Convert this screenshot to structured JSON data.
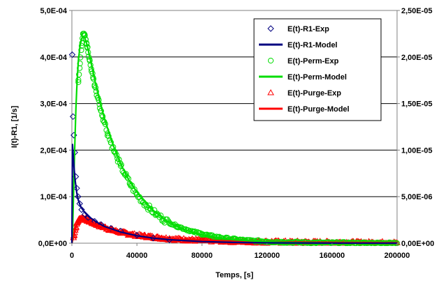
{
  "chart_data": {
    "type": "scatter",
    "xlabel": "Temps, [s]",
    "ylabel": "I(t)-R1, [1/s]",
    "xlim": [
      0,
      200000
    ],
    "ylim_left": [
      0,
      0.0005
    ],
    "ylim_right": [
      0,
      2.5e-05
    ],
    "x_ticks": [
      "0",
      "40000",
      "80000",
      "120000",
      "160000",
      "200000"
    ],
    "x_tick_values": [
      0,
      40000,
      80000,
      120000,
      160000,
      200000
    ],
    "y_ticks_left": [
      "0,0E+00",
      "1,0E-04",
      "2,0E-04",
      "3,0E-04",
      "4,0E-04",
      "5,0E-04"
    ],
    "y_tick_values_left": [
      0,
      0.0001,
      0.0002,
      0.0003,
      0.0004,
      0.0005
    ],
    "y_ticks_right": [
      "0,00E+00",
      "5,00E-06",
      "1,00E-05",
      "1,50E-05",
      "2,00E-05",
      "2,50E-05"
    ],
    "y_tick_values_right": [
      0,
      5e-06,
      1e-05,
      1.5e-05,
      2e-05,
      2.5e-05
    ],
    "grid": "horizontal",
    "legend_position": "top-right",
    "colors": {
      "R1": "#000080",
      "Perm": "#00dd00",
      "Purge": "#ff0000"
    },
    "series": [
      {
        "name": "E(t)-R1-Exp",
        "kind": "markers",
        "marker": "diamond",
        "color": "#000080",
        "axis": "left",
        "x": [
          200,
          700,
          1200,
          1800,
          2400,
          3000,
          3800,
          4800,
          6000,
          8000,
          10000,
          14000,
          18000,
          24000,
          30000,
          40000,
          50000,
          60000
        ],
        "y": [
          0.000405,
          0.000272,
          0.000232,
          0.000195,
          0.000143,
          0.000118,
          0.0001,
          8.5e-05,
          7.2e-05,
          6.2e-05,
          5.5e-05,
          4.7e-05,
          4e-05,
          3.2e-05,
          2.6e-05,
          1.7e-05,
          1.1e-05,
          7e-06
        ]
      },
      {
        "name": "E(t)-R1-Model",
        "kind": "line",
        "color": "#000080",
        "axis": "left",
        "x": [
          0,
          400,
          900,
          1300,
          2000,
          3000,
          4000,
          5500,
          7500,
          10000,
          15000,
          20000,
          30000,
          40000,
          50000,
          60000,
          80000,
          100000,
          120000,
          160000,
          200000
        ],
        "y": [
          0,
          0.000212,
          0.000185,
          0.000165,
          0.000135,
          0.000108,
          9.2e-05,
          7.8e-05,
          6.8e-05,
          5.8e-05,
          4.6e-05,
          3.6e-05,
          2.4e-05,
          1.6e-05,
          1.1e-05,
          7.5e-06,
          3.5e-06,
          1.6e-06,
          8e-07,
          2e-07,
          0
        ]
      },
      {
        "name": "E(t)-Perm-Exp",
        "kind": "markers",
        "marker": "circle",
        "color": "#00dd00",
        "axis": "right",
        "x": [
          4000,
          5000,
          6000,
          6500,
          7000,
          7500,
          8000,
          8500,
          9000,
          9500,
          10000,
          11000,
          12000,
          13000,
          14000,
          15000,
          16000,
          17000,
          18000,
          19000,
          20000,
          22000,
          24000,
          26000,
          28000,
          30000,
          33000,
          36000,
          40000,
          44000,
          48000,
          52000,
          56000,
          60000,
          65000,
          70000,
          75000,
          80000,
          85000,
          90000,
          95000,
          100000,
          106000,
          112000,
          120000,
          130000,
          140000,
          150000,
          160000,
          170000,
          180000,
          190000,
          200000
        ],
        "y": [
          1.73e-05,
          1.93e-05,
          2.12e-05,
          2.2e-05,
          2.25e-05,
          2.25e-05,
          2.23e-05,
          2.19e-05,
          2.15e-05,
          2.1e-05,
          2.05e-05,
          1.96e-05,
          1.87e-05,
          1.78e-05,
          1.7e-05,
          1.63e-05,
          1.56e-05,
          1.49e-05,
          1.42e-05,
          1.36e-05,
          1.3e-05,
          1.18e-05,
          1.08e-05,
          9.9e-06,
          9.1e-06,
          8.3e-06,
          7.3e-06,
          6.3e-06,
          5.2e-06,
          4.4e-06,
          3.7e-06,
          3.1e-06,
          2.6e-06,
          2.2e-06,
          1.8e-06,
          1.5e-06,
          1.2e-06,
          1e-06,
          8e-07,
          6.5e-07,
          5.2e-07,
          4.2e-07,
          3.2e-07,
          2.5e-07,
          1.8e-07,
          1.2e-07,
          8e-08,
          5e-08,
          3e-08,
          2e-08,
          1e-08,
          1e-08,
          0
        ],
        "noise": 2e-07
      },
      {
        "name": "E(t)-Perm-Model",
        "kind": "line",
        "color": "#00dd00",
        "axis": "right",
        "x": [
          0,
          500,
          1000,
          1500,
          2000,
          2500,
          3000,
          3500,
          4000,
          5000,
          6000,
          7000,
          8000,
          9000,
          10000,
          12000,
          14000,
          16000,
          18000,
          20000,
          25000,
          30000,
          35000,
          40000,
          50000,
          60000,
          70000,
          80000,
          90000,
          100000,
          120000,
          140000,
          160000,
          180000,
          200000
        ],
        "y": [
          0,
          1.8e-06,
          5e-06,
          8.7e-06,
          1.18e-05,
          1.45e-05,
          1.66e-05,
          1.83e-05,
          1.96e-05,
          2.12e-05,
          2.2e-05,
          2.22e-05,
          2.2e-05,
          2.15e-05,
          2.08e-05,
          1.92e-05,
          1.76e-05,
          1.61e-05,
          1.47e-05,
          1.34e-05,
          1.07e-05,
          8.5e-06,
          6.8e-06,
          5.5e-06,
          3.5e-06,
          2.2e-06,
          1.4e-06,
          9e-07,
          5.7e-07,
          3.6e-07,
          1.5e-07,
          6e-08,
          2e-08,
          1e-08,
          0
        ]
      },
      {
        "name": "E(t)-Purge-Exp",
        "kind": "markers",
        "marker": "triangle",
        "color": "#ff0000",
        "axis": "left",
        "x": [
          1000,
          2000,
          3000,
          4000,
          5000,
          6000,
          7000,
          8000,
          9000,
          10000,
          12000,
          14000,
          16000,
          18000,
          20000,
          24000,
          28000,
          32000,
          36000,
          40000,
          45000,
          50000,
          55000,
          60000,
          70000,
          80000,
          90000,
          100000,
          110000,
          120000,
          130000,
          140000,
          150000,
          160000,
          170000,
          180000,
          190000,
          200000
        ],
        "y": [
          1.2e-05,
          2.8e-05,
          4.1e-05,
          4.9e-05,
          5.3e-05,
          5.4e-05,
          5.4e-05,
          5.2e-05,
          5e-05,
          4.8e-05,
          4.5e-05,
          4.2e-05,
          3.9e-05,
          3.6e-05,
          3.4e-05,
          2.9e-05,
          2.5e-05,
          2.2e-05,
          1.9e-05,
          1.7e-05,
          1.5e-05,
          1.3e-05,
          1.1e-05,
          9.5e-06,
          7.5e-06,
          6e-06,
          4.8e-06,
          4e-06,
          3.3e-06,
          2.8e-06,
          2.4e-06,
          2e-06,
          1.8e-06,
          1.5e-06,
          1.3e-06,
          1.1e-06,
          1e-06,
          9e-07
        ],
        "noise": 3e-06
      },
      {
        "name": "E(t)-Purge-Model",
        "kind": "line",
        "color": "#ff0000",
        "axis": "left",
        "x": [
          0,
          1000,
          2000,
          3000,
          4000,
          5000,
          6000,
          7000,
          8000,
          10000,
          12000,
          15000,
          20000,
          25000,
          30000,
          40000,
          50000,
          60000,
          80000,
          100000,
          120000,
          140000,
          160000,
          180000,
          200000
        ],
        "y": [
          0,
          1.2e-05,
          2.8e-05,
          4e-05,
          4.7e-05,
          5.1e-05,
          5.2e-05,
          5.1e-05,
          5e-05,
          4.7e-05,
          4.4e-05,
          4e-05,
          3.3e-05,
          2.7e-05,
          2.2e-05,
          1.6e-05,
          1.2e-05,
          9.5e-06,
          6.5e-06,
          4.5e-06,
          3.3e-06,
          2.4e-06,
          1.8e-06,
          1.3e-06,
          1e-06
        ]
      }
    ]
  }
}
